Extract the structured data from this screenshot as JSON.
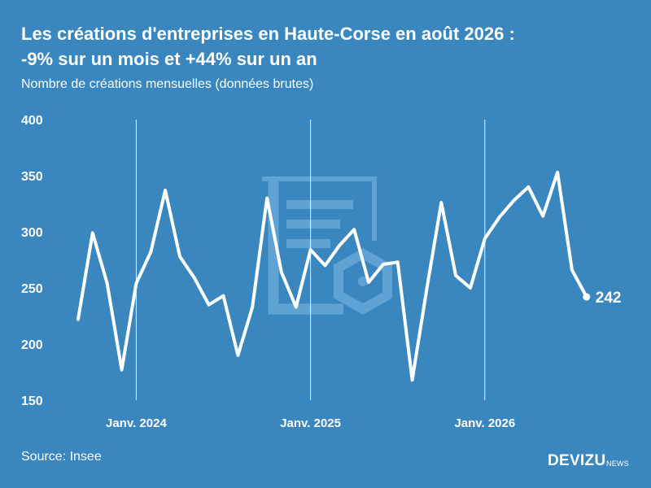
{
  "header": {
    "title_line1": "Les créations d'entreprises en Haute-Corse en août 2026 :",
    "title_line2": "-9% sur un mois et +44% sur un an",
    "subtitle": "Nombre de créations mensuelles (données brutes)"
  },
  "footer": {
    "source": "Source: Insee",
    "brand": "DEVIZU",
    "brand_sub": "NEWS"
  },
  "colors": {
    "background": "#3a87c0",
    "line": "#ffffff",
    "watermark": "#5ea3d3"
  },
  "chart_data": {
    "type": "line",
    "title": "Les créations d'entreprises en Haute-Corse en août 2026 : -9% sur un mois et +44% sur un an",
    "subtitle": "Nombre de créations mensuelles (données brutes)",
    "ylim": [
      150,
      400
    ],
    "y_ticks": [
      150,
      200,
      250,
      300,
      350,
      400
    ],
    "x_tick_labels": [
      "Janv. 2024",
      "Janv. 2025",
      "Janv. 2026"
    ],
    "grid": "vertical lines at January of each year",
    "legend": "none",
    "x": [
      "2023-09",
      "2023-10",
      "2023-11",
      "2023-12",
      "2024-01",
      "2024-02",
      "2024-03",
      "2024-04",
      "2024-05",
      "2024-06",
      "2024-07",
      "2024-08",
      "2024-09",
      "2024-10",
      "2024-11",
      "2024-12",
      "2025-01",
      "2025-02",
      "2025-03",
      "2025-04",
      "2025-05",
      "2025-06",
      "2025-07",
      "2025-08",
      "2025-09",
      "2025-10",
      "2025-11",
      "2025-12",
      "2026-01",
      "2026-02",
      "2026-03",
      "2026-04",
      "2026-05",
      "2026-06",
      "2026-07",
      "2026-08"
    ],
    "series": [
      {
        "values": [
          222,
          299,
          254,
          177,
          254,
          282,
          337,
          278,
          259,
          235,
          243,
          190,
          233,
          330,
          264,
          233,
          284,
          270,
          288,
          302,
          255,
          271,
          273,
          168,
          249,
          326,
          261,
          250,
          294,
          313,
          328,
          340,
          314,
          353,
          266,
          242
        ]
      }
    ],
    "end_label": "242"
  }
}
